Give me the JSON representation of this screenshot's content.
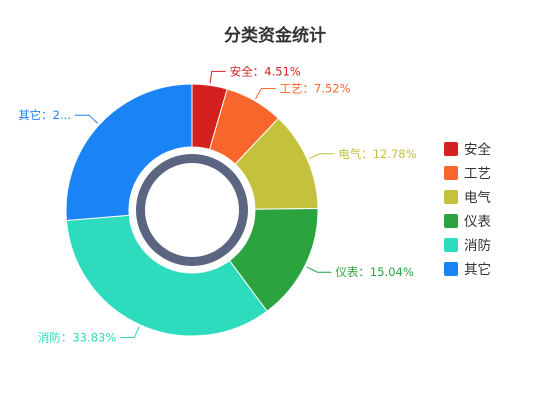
{
  "chart_data": {
    "type": "pie",
    "variant": "donut",
    "title": "分类资金统计",
    "slices": [
      {
        "name": "安全",
        "value": 4.51,
        "color": "#d4201e",
        "label": "安全：4.51%"
      },
      {
        "name": "工艺",
        "value": 7.52,
        "color": "#f9662c",
        "label": "工艺：7.52%"
      },
      {
        "name": "电气",
        "value": 12.78,
        "color": "#c4c23d",
        "label": "电气：12.78%"
      },
      {
        "name": "仪表",
        "value": 15.04,
        "color": "#2ba33f",
        "label": "仪表：15.04%"
      },
      {
        "name": "消防",
        "value": 33.83,
        "color": "#2ddbbd",
        "label": "消防：33.83%"
      },
      {
        "name": "其它",
        "value": 26.32,
        "color": "#1a83f5",
        "label": "其它：2..."
      }
    ],
    "legend": {
      "position": "right",
      "items": [
        "安全",
        "工艺",
        "电气",
        "仪表",
        "消防",
        "其它"
      ]
    },
    "center_ring_color": "#5b6582"
  }
}
